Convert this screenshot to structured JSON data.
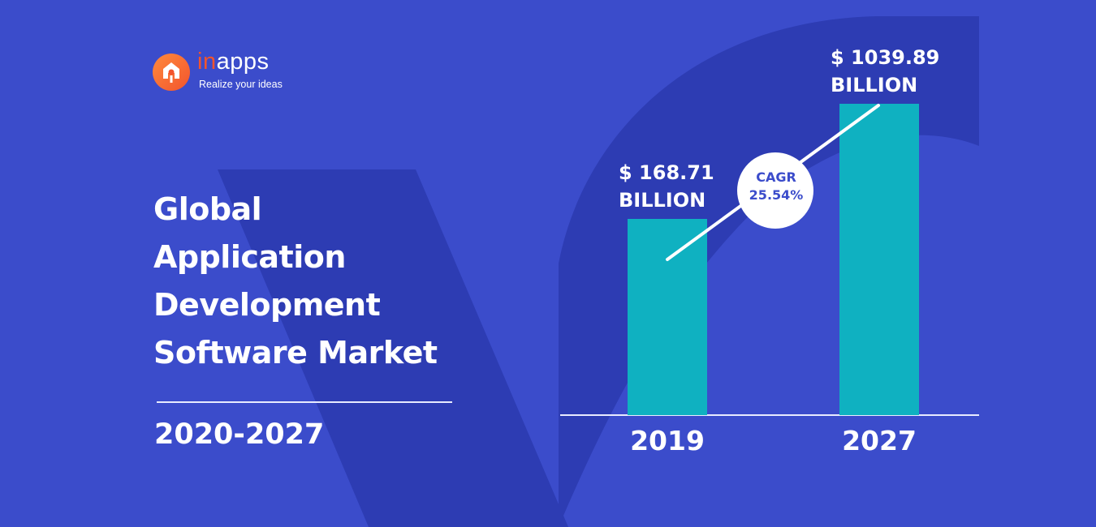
{
  "brand": {
    "name_accent": "in",
    "name_rest": "apps",
    "tagline": "Realize your ideas",
    "logo_icon": "pin-icon",
    "logo_color": "#f2542d"
  },
  "headline": {
    "lines": [
      "Global",
      "Application",
      "Development",
      "Software Market"
    ],
    "period": "2020-2027"
  },
  "colors": {
    "background": "#3b4ccb",
    "accent_shape": "#2d3cb3",
    "bar": "#0fb1c1",
    "text": "#ffffff"
  },
  "chart_data": {
    "type": "bar",
    "categories": [
      "2019",
      "2027"
    ],
    "values": [
      168.71,
      1039.89
    ],
    "data_labels": [
      [
        "$ 168.71",
        "BILLION"
      ],
      [
        "$ 1039.89",
        "BILLION"
      ]
    ],
    "annotation": [
      "CAGR",
      "25.54%"
    ],
    "trend_line": true,
    "grid": false
  }
}
